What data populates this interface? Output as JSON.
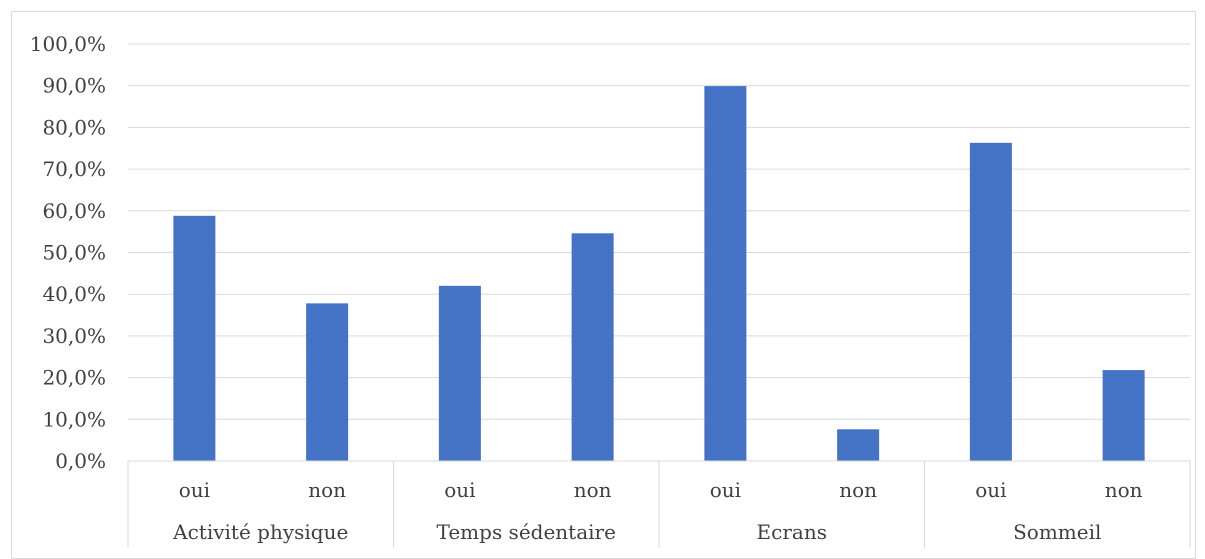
{
  "chart_data": {
    "type": "bar",
    "groups": [
      "Activité physique",
      "Temps sédentaire",
      "Ecrans",
      "Sommeil"
    ],
    "subcategories": [
      "oui",
      "non"
    ],
    "categories": [
      "oui",
      "non",
      "oui",
      "non",
      "oui",
      "non",
      "oui",
      "non"
    ],
    "values": [
      58.8,
      37.8,
      42.0,
      54.6,
      89.9,
      7.6,
      76.3,
      21.8
    ],
    "ylim": [
      0,
      100
    ],
    "yticks": [
      "0,0%",
      "10,0%",
      "20,0%",
      "30,0%",
      "40,0%",
      "50,0%",
      "60,0%",
      "70,0%",
      "80,0%",
      "90,0%",
      "100,0%"
    ],
    "grid": true,
    "bar_color": "#4472C4"
  }
}
